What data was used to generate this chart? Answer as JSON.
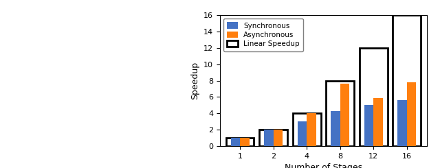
{
  "categories": [
    1,
    2,
    4,
    8,
    12,
    16
  ],
  "synchronous": [
    1.0,
    2.0,
    3.0,
    4.3,
    5.0,
    5.6
  ],
  "asynchronous": [
    1.0,
    2.0,
    4.0,
    7.6,
    5.9,
    7.8
  ],
  "linear_speedup": [
    1,
    2,
    4,
    8,
    12,
    16
  ],
  "sync_color": "#4472C4",
  "async_color": "#FF7F0E",
  "linear_color": "white",
  "linear_edgecolor": "black",
  "xlabel": "Number of Stages",
  "ylabel": "Speedup",
  "ylim": [
    0,
    16
  ],
  "yticks": [
    0,
    2,
    4,
    6,
    8,
    10,
    12,
    14,
    16
  ],
  "legend_labels": [
    "Synchronous",
    "Asynchronous",
    "Linear Speedup"
  ],
  "bar_width": 0.28
}
